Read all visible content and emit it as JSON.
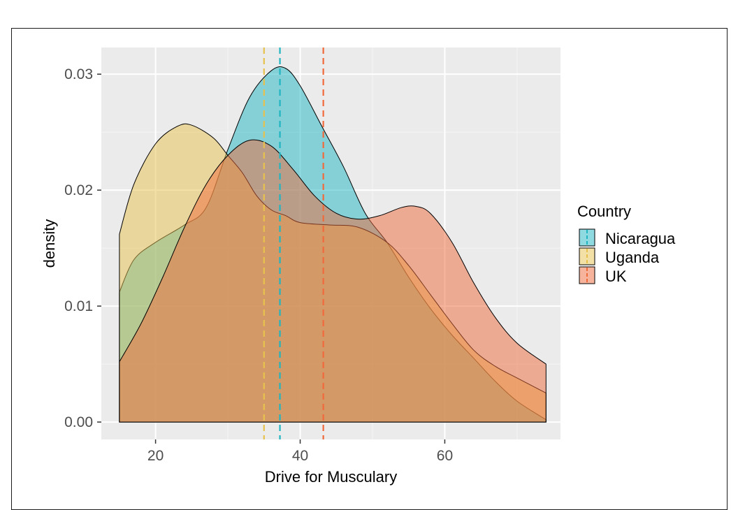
{
  "chart_data": {
    "type": "area",
    "xlabel": "Drive for Musculary",
    "ylabel": "density",
    "xlim": [
      12.5,
      76
    ],
    "ylim": [
      -0.0015,
      0.0323
    ],
    "x_ticks": [
      20,
      40,
      60
    ],
    "y_ticks": [
      0.0,
      0.01,
      0.02,
      0.03
    ],
    "y_tick_labels": [
      "0.00",
      "0.01",
      "0.02",
      "0.03"
    ],
    "grid": true,
    "legend": {
      "title": "Country",
      "position": "right"
    },
    "series": [
      {
        "name": "Nicaragua",
        "color": "#1fb5c2",
        "mean": 37.2,
        "points": [
          [
            15,
            0.0112
          ],
          [
            17,
            0.014
          ],
          [
            20,
            0.0155
          ],
          [
            24,
            0.017
          ],
          [
            27,
            0.0185
          ],
          [
            30,
            0.0235
          ],
          [
            33,
            0.028
          ],
          [
            36,
            0.0303
          ],
          [
            38,
            0.0305
          ],
          [
            40,
            0.029
          ],
          [
            43,
            0.0255
          ],
          [
            46,
            0.022
          ],
          [
            49,
            0.018
          ],
          [
            52,
            0.0155
          ],
          [
            55,
            0.0125
          ],
          [
            58,
            0.0098
          ],
          [
            61,
            0.0075
          ],
          [
            64,
            0.0055
          ],
          [
            67,
            0.0035
          ],
          [
            70,
            0.0018
          ],
          [
            74,
            0.0002
          ]
        ]
      },
      {
        "name": "Uganda",
        "color": "#e7c14d",
        "mean": 35.0,
        "points": [
          [
            15,
            0.0162
          ],
          [
            17,
            0.0205
          ],
          [
            20,
            0.024
          ],
          [
            23,
            0.0255
          ],
          [
            25,
            0.0256
          ],
          [
            28,
            0.0245
          ],
          [
            30,
            0.023
          ],
          [
            32,
            0.0215
          ],
          [
            34,
            0.0195
          ],
          [
            36,
            0.0183
          ],
          [
            38,
            0.0178
          ],
          [
            40,
            0.0172
          ],
          [
            44,
            0.017
          ],
          [
            48,
            0.0168
          ],
          [
            52,
            0.0155
          ],
          [
            55,
            0.0135
          ],
          [
            58,
            0.011
          ],
          [
            61,
            0.0085
          ],
          [
            64,
            0.0062
          ],
          [
            67,
            0.0048
          ],
          [
            70,
            0.0038
          ],
          [
            74,
            0.0025
          ]
        ]
      },
      {
        "name": "UK",
        "color": "#f06a3c",
        "mean": 43.2,
        "points": [
          [
            15,
            0.0052
          ],
          [
            18,
            0.0085
          ],
          [
            21,
            0.0125
          ],
          [
            24,
            0.0168
          ],
          [
            27,
            0.0205
          ],
          [
            30,
            0.023
          ],
          [
            33,
            0.0243
          ],
          [
            36,
            0.0238
          ],
          [
            39,
            0.0218
          ],
          [
            42,
            0.0195
          ],
          [
            45,
            0.018
          ],
          [
            48,
            0.0175
          ],
          [
            51,
            0.0178
          ],
          [
            54,
            0.0185
          ],
          [
            56,
            0.0186
          ],
          [
            58,
            0.018
          ],
          [
            61,
            0.0155
          ],
          [
            64,
            0.012
          ],
          [
            67,
            0.009
          ],
          [
            70,
            0.0068
          ],
          [
            74,
            0.005
          ]
        ]
      }
    ]
  }
}
